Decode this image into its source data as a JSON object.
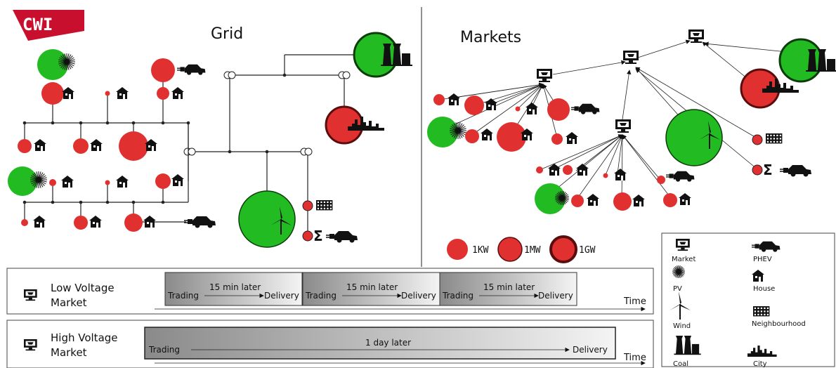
{
  "logo": {
    "text": "CWI",
    "color": "#c8102e"
  },
  "titles": {
    "grid": "Grid",
    "markets": "Markets"
  },
  "size_legend": [
    "1KW",
    "1MW",
    "1GW"
  ],
  "timeline": {
    "low": {
      "label_line1": "Low Voltage",
      "label_line2": "Market",
      "blocks": [
        {
          "trading": "Trading",
          "delay": "15 min later",
          "delivery": "Delivery"
        },
        {
          "trading": "Trading",
          "delay": "15 min later",
          "delivery": "Delivery"
        },
        {
          "trading": "Trading",
          "delay": "15 min later",
          "delivery": "Delivery"
        }
      ],
      "axis": "Time"
    },
    "high": {
      "label_line1": "High Voltage",
      "label_line2": "Market",
      "trading": "Trading",
      "delay": "1 day later",
      "delivery": "Delivery",
      "axis": "Time"
    }
  },
  "icon_legend": [
    {
      "icon": "market-icon",
      "label": "Market"
    },
    {
      "icon": "phev-icon",
      "label": "PHEV"
    },
    {
      "icon": "pv-icon",
      "label": "PV"
    },
    {
      "icon": "house-icon",
      "label": "House"
    },
    {
      "icon": "wind-icon",
      "label": "Wind"
    },
    {
      "icon": "neighbourhood-icon",
      "label": "Neighbourhood"
    },
    {
      "icon": "coal-icon",
      "label": "Coal"
    },
    {
      "icon": "city-icon",
      "label": "City"
    }
  ],
  "colors": {
    "consumer": "#e03030",
    "producer": "#22bb22",
    "dark_red": "#5a0d0d",
    "dark_green": "#0b3d0b"
  }
}
